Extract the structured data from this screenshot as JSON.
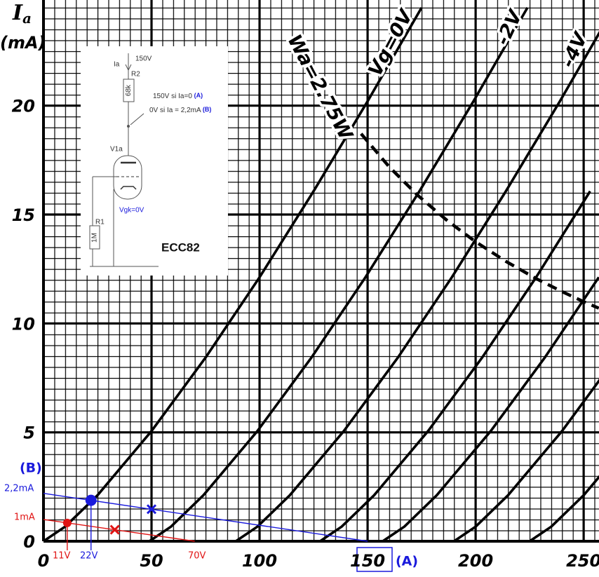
{
  "chart_data": {
    "type": "line",
    "ylabel": {
      "symbol": "I",
      "subscript": "a",
      "unit": "(mA)"
    },
    "xlim": [
      0,
      257.1
    ],
    "ylim": [
      0,
      24.85
    ],
    "xticks": [
      0,
      50,
      100,
      150,
      200,
      250
    ],
    "yticks": [
      0,
      5,
      10,
      15,
      20
    ],
    "grid": true,
    "series": [
      {
        "name": "Vg=0V",
        "color": "#000000",
        "x": [
          0,
          10,
          25,
          50,
          75,
          100,
          125,
          150,
          175
        ],
        "values": [
          0,
          0.67,
          2.11,
          5.06,
          8.43,
          12.12,
          16.07,
          20.2,
          24.5
        ]
      },
      {
        "name": "-2V",
        "color": "#000000",
        "x": [
          49,
          59,
          74,
          99,
          124,
          149,
          174,
          199,
          224
        ],
        "values": [
          0,
          0.67,
          2.11,
          5.06,
          8.43,
          12.12,
          16.07,
          20.2,
          24.5
        ]
      },
      {
        "name": "-4V",
        "color": "#000000",
        "x": [
          89,
          99,
          114,
          139,
          164,
          189,
          214,
          239,
          264
        ],
        "values": [
          0,
          0.67,
          2.11,
          5.06,
          8.43,
          12.12,
          16.07,
          20.2,
          24.5
        ]
      },
      {
        "color": "#000000",
        "x": [
          128,
          138,
          153,
          178,
          203,
          228,
          253
        ],
        "values": [
          0,
          0.67,
          2.11,
          5.06,
          8.43,
          12.12,
          16.07
        ]
      },
      {
        "color": "#000000",
        "x": [
          157,
          167,
          182,
          207,
          232,
          257
        ],
        "values": [
          0,
          0.67,
          2.11,
          5.06,
          8.43,
          12.12
        ]
      },
      {
        "color": "#000000",
        "x": [
          190,
          200,
          215,
          240,
          265
        ],
        "values": [
          0,
          0.67,
          2.11,
          5.06,
          8.43
        ]
      },
      {
        "color": "#000000",
        "x": [
          225,
          235,
          250,
          275
        ],
        "values": [
          0,
          0.67,
          2.11,
          5.06
        ]
      }
    ],
    "power_curve": {
      "name": "Wa=2.75W",
      "color": "#000000",
      "dashed": true,
      "x": [
        147,
        160,
        173,
        187,
        200,
        214,
        228,
        240,
        250,
        257
      ],
      "values": [
        18.71,
        17.19,
        15.9,
        14.71,
        13.75,
        12.85,
        12.06,
        11.46,
        11.0,
        10.7
      ]
    },
    "load_lines": [
      {
        "color": "#1a1adc",
        "x": [
          0,
          150
        ],
        "values": [
          2.2,
          0
        ]
      },
      {
        "color": "#e01414",
        "x": [
          0,
          70
        ],
        "values": [
          1,
          0
        ]
      }
    ],
    "markers": [
      {
        "shape": "circle",
        "color": "#1a1adc",
        "x": 22,
        "y": 1.88,
        "drop": true
      },
      {
        "shape": "cross",
        "color": "#1a1adc",
        "x": 50,
        "y": 1.47
      },
      {
        "shape": "circle",
        "color": "#e01414",
        "x": 11,
        "y": 0.84,
        "drop": true
      },
      {
        "shape": "cross",
        "color": "#e01414",
        "x": 33,
        "y": 0.53
      }
    ],
    "annotations": {
      "b": "(B)",
      "b_current": "2,2mA",
      "r_current": "1mA",
      "r_volt": "11V",
      "b_volt": "22V",
      "r_end": "70V",
      "a": "(A)"
    }
  },
  "inset": {
    "supply": "150V",
    "current": "Ia",
    "r2": "R2",
    "r2_value": "68k",
    "note_a": "150V si Ia=0",
    "note_a_tag": "(A)",
    "note_b": "0V si Ia = 2,2mA",
    "note_b_tag": "(B)",
    "tube": "V1a",
    "r1": "R1",
    "r1_value": "1M",
    "bias": "Vgk=0V",
    "model": "ECC82"
  }
}
